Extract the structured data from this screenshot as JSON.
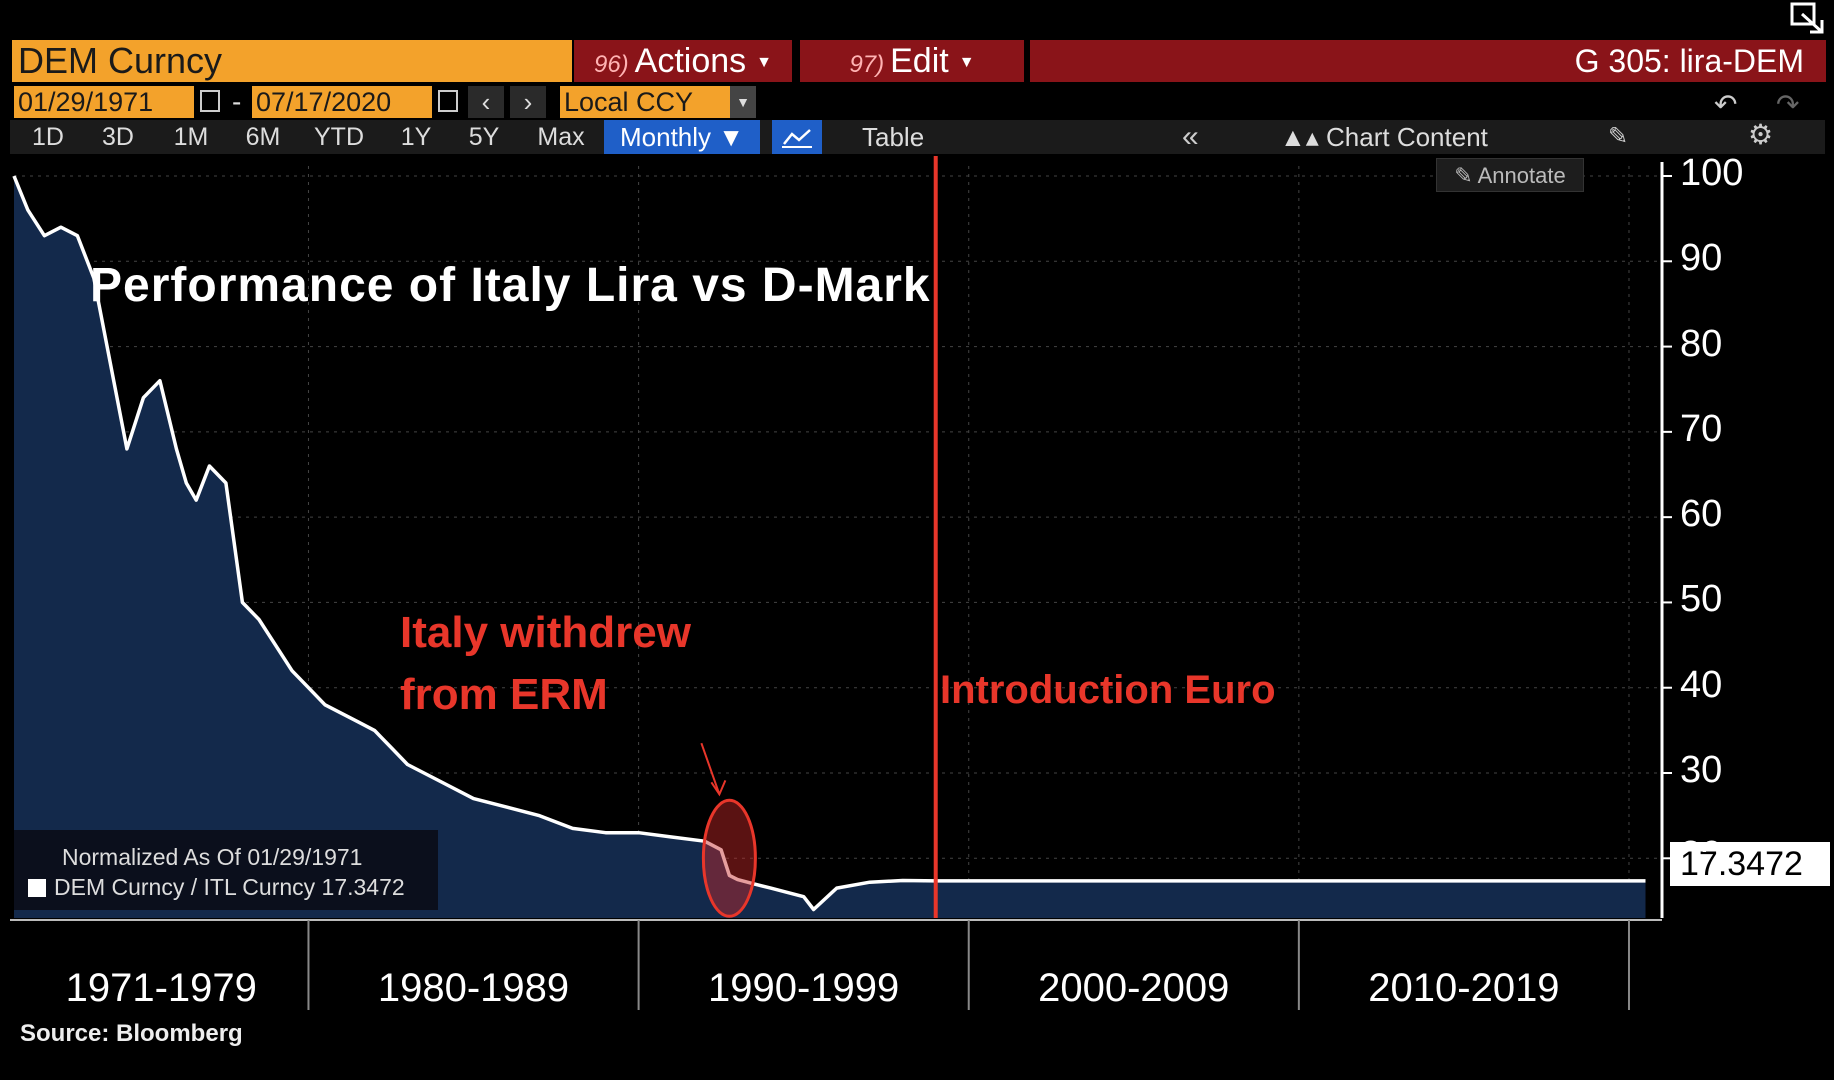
{
  "header": {
    "ticker": "DEM Curncy",
    "actions_num": "96)",
    "actions_label": "Actions",
    "edit_num": "97)",
    "edit_label": "Edit",
    "page_title": "G 305: lira-DEM"
  },
  "date_range": {
    "start": "01/29/1971",
    "separator": "-",
    "end": "07/17/2020",
    "currency": "Local CCY"
  },
  "toolbar": {
    "periods": [
      "1D",
      "3D",
      "1M",
      "6M",
      "YTD",
      "1Y",
      "5Y",
      "Max"
    ],
    "frequency": "Monthly ▼",
    "table_label": "Table",
    "chart_content_label": "Chart Content",
    "annotate_label": "Annotate"
  },
  "annotations": {
    "title": "Performance of Italy Lira vs D-Mark",
    "erm_line1": "Italy withdrew",
    "erm_line2": "from ERM",
    "euro": "Introduction Euro"
  },
  "legend": {
    "normalized": "Normalized As Of 01/29/1971",
    "series": "DEM Curncy / ITL Curncy 17.3472"
  },
  "last_value": "17.3472",
  "source": "Source: Bloomberg",
  "colors": {
    "ticker_bg": "#f3a22b",
    "menu_bg": "#8a1419",
    "accent_blue": "#1f5fc8",
    "annotation_red": "#e8362a",
    "area_fill": "#13294b"
  },
  "chart_data": {
    "type": "area",
    "title": "Performance of Italy Lira vs D-Mark",
    "series": [
      {
        "name": "DEM Curncy / ITL Curncy",
        "x": [
          1971.08,
          1971.5,
          1972.0,
          1972.5,
          1973.0,
          1973.5,
          1974.0,
          1974.5,
          1975.0,
          1975.5,
          1976.0,
          1976.3,
          1976.6,
          1977.0,
          1977.5,
          1978.0,
          1978.5,
          1979.0,
          1979.5,
          1980.0,
          1980.5,
          1981.0,
          1981.5,
          1982.0,
          1982.5,
          1983.0,
          1984.0,
          1985.0,
          1986.0,
          1987.0,
          1988.0,
          1989.0,
          1990.0,
          1991.0,
          1992.0,
          1992.5,
          1992.75,
          1993.0,
          1993.5,
          1994.0,
          1995.0,
          1995.3,
          1996.0,
          1997.0,
          1998.0,
          1999.0,
          2000.0,
          2005.0,
          2010.0,
          2015.0,
          2020.5
        ],
        "values": [
          100,
          96,
          93,
          94,
          93,
          88,
          78,
          68,
          74,
          76,
          68,
          64,
          62,
          66,
          64,
          50,
          48,
          45,
          42,
          40,
          38,
          37,
          36,
          35,
          33,
          31,
          29,
          27,
          26,
          25,
          23.5,
          23,
          23,
          22.5,
          22,
          21,
          18,
          17.5,
          17,
          16.5,
          15.5,
          14,
          16.5,
          17.2,
          17.4,
          17.3472,
          17.3472,
          17.3472,
          17.3472,
          17.3472,
          17.3472
        ]
      }
    ],
    "x_categories": [
      "1971-1979",
      "1980-1989",
      "1990-1999",
      "2000-2009",
      "2010-2019"
    ],
    "yticks": [
      20,
      30,
      40,
      50,
      60,
      70,
      80,
      90,
      100
    ],
    "ylim": [
      13,
      100
    ],
    "xlim": [
      1971.08,
      2021.0
    ],
    "events": [
      {
        "label": "Italy withdrew from ERM",
        "x": 1992.75
      },
      {
        "label": "Introduction Euro",
        "x": 1999.0
      }
    ],
    "last_value": 17.3472
  }
}
